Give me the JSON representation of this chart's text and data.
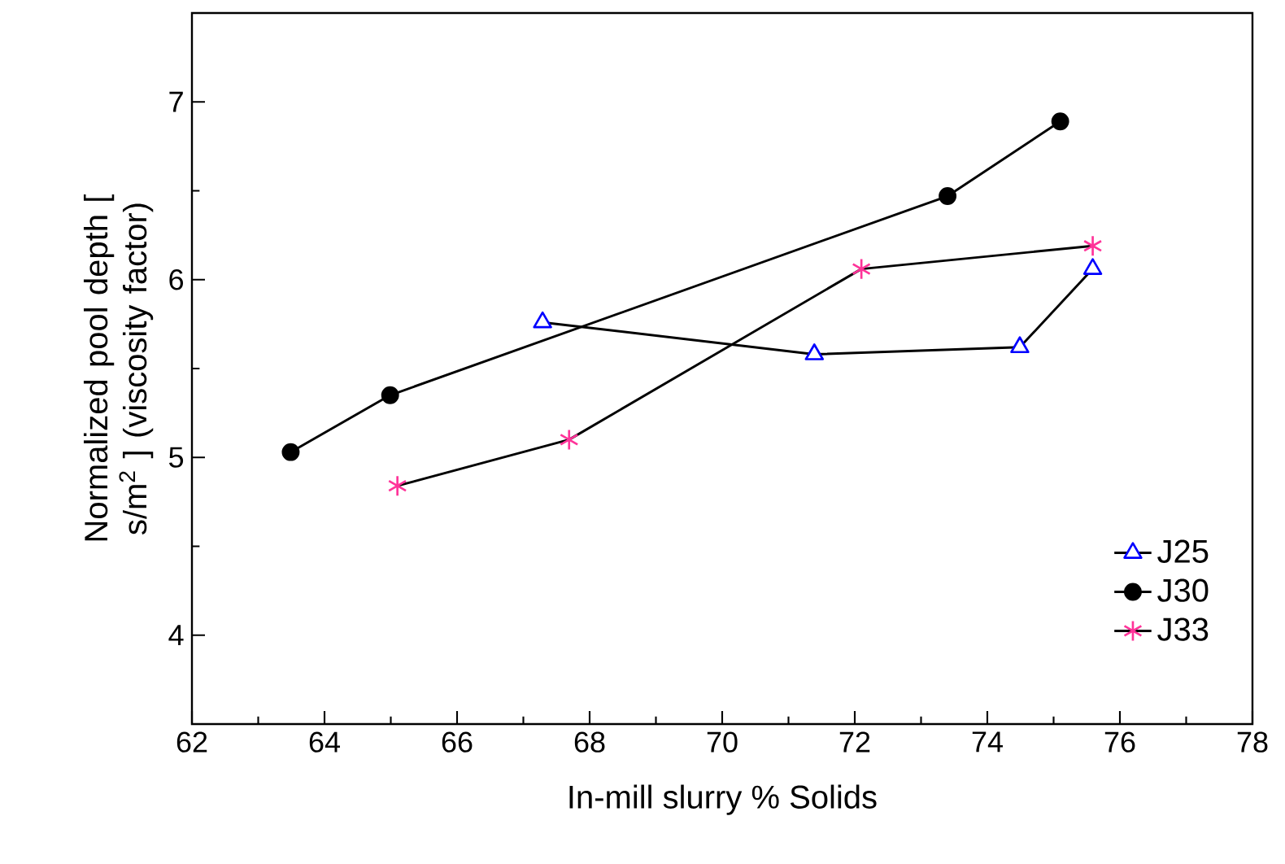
{
  "chart_data": {
    "type": "line",
    "xlabel": "In-mill slurry % Solids",
    "ylabel": "Normalized pool depth [ s/m$^{2}$ ] (viscosity factor)",
    "xlim": [
      62,
      78
    ],
    "xticks": [
      62,
      64,
      66,
      68,
      70,
      72,
      74,
      76,
      78
    ],
    "ylim": [
      3.5,
      7.5
    ],
    "yticks": [
      4,
      5,
      6,
      7
    ],
    "legend": "bottom right",
    "grid": false,
    "line_style": "solid",
    "series": [
      {
        "name": "J25",
        "color": "#0000ff",
        "marker": "triangle",
        "x": [
          67.29,
          71.39,
          74.49,
          75.59
        ],
        "values": [
          5.76,
          5.58,
          5.62,
          6.06
        ]
      },
      {
        "name": "J30",
        "color": "#000000",
        "marker": "circle",
        "x": [
          63.49,
          64.99,
          73.4,
          75.1
        ],
        "values": [
          5.03,
          5.35,
          6.47,
          6.89
        ]
      },
      {
        "name": "J33",
        "color": "#ff3399",
        "marker": "cross",
        "x": [
          65.1,
          67.69,
          72.1,
          75.59
        ],
        "values": [
          4.84,
          5.1,
          6.06,
          6.19
        ]
      }
    ]
  }
}
